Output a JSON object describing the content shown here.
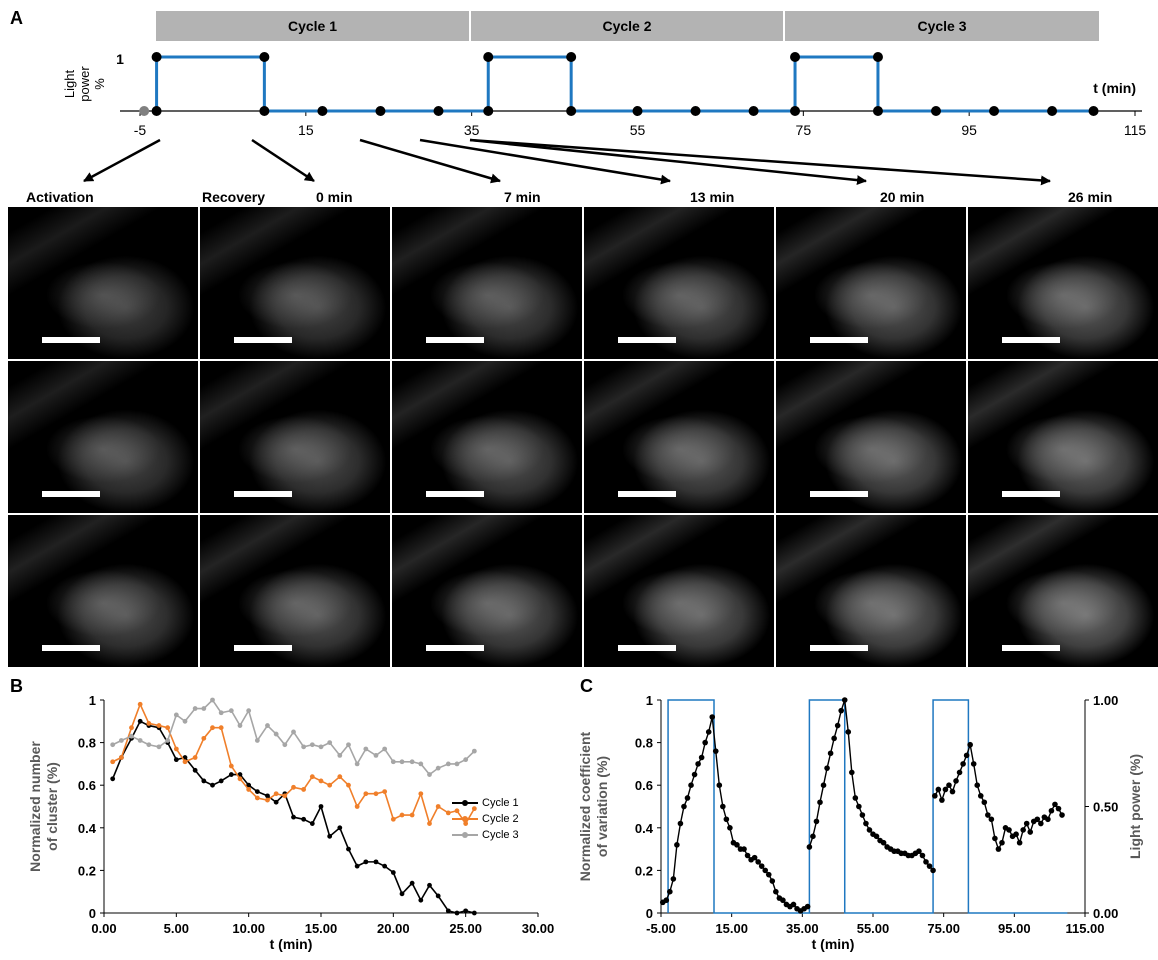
{
  "panel_a": {
    "letter": "A",
    "cycles": [
      "Cycle 1",
      "Cycle 2",
      "Cycle 3"
    ],
    "y_label": [
      "Light",
      "power",
      "%"
    ],
    "y_tick_1": "1",
    "x_label": "t (min)",
    "x_ticks": [
      "-5",
      "15",
      "35",
      "55",
      "75",
      "95",
      "115"
    ],
    "image_labels": [
      "Activation",
      "Recovery",
      "0 min",
      "7 min",
      "13 min",
      "20 min",
      "26 min"
    ],
    "grid_rows": 3,
    "grid_cols": 6
  },
  "panel_b": {
    "letter": "B",
    "chart_data": {
      "type": "line",
      "xlabel": "t (min)",
      "ylabel": "Normalized number of cluster (%)",
      "ylabel_lines": [
        "Normalized number",
        "of cluster (%)"
      ],
      "xlim": [
        0,
        30
      ],
      "ylim": [
        0,
        1
      ],
      "x_ticks": [
        "0.00",
        "5.00",
        "10.00",
        "15.00",
        "20.00",
        "25.00",
        "30.00"
      ],
      "y_ticks": [
        "0",
        "0.2",
        "0.4",
        "0.6",
        "0.8",
        "1"
      ],
      "legend_position": "right",
      "series": [
        {
          "name": "Cycle 1",
          "color": "#000000",
          "x": [
            0.6,
            1.2,
            1.9,
            2.5,
            3.1,
            3.8,
            4.4,
            5.0,
            5.6,
            6.3,
            6.9,
            7.5,
            8.1,
            8.8,
            9.4,
            10.0,
            10.6,
            11.3,
            11.9,
            12.5,
            13.1,
            13.8,
            14.4,
            15.0,
            15.6,
            16.3,
            16.9,
            17.5,
            18.1,
            18.8,
            19.4,
            20.0,
            20.6,
            21.3,
            21.9,
            22.5,
            23.1,
            23.8,
            24.4,
            25.0,
            25.6
          ],
          "y": [
            0.63,
            0.73,
            0.82,
            0.9,
            0.88,
            0.87,
            0.8,
            0.72,
            0.73,
            0.67,
            0.62,
            0.6,
            0.62,
            0.65,
            0.65,
            0.6,
            0.57,
            0.55,
            0.52,
            0.56,
            0.45,
            0.44,
            0.42,
            0.5,
            0.36,
            0.4,
            0.3,
            0.22,
            0.24,
            0.24,
            0.22,
            0.19,
            0.09,
            0.14,
            0.06,
            0.13,
            0.08,
            0.01,
            0.0,
            0.01,
            0.0
          ]
        },
        {
          "name": "Cycle 2",
          "color": "#f07f2a",
          "x": [
            0.6,
            1.2,
            1.9,
            2.5,
            3.1,
            3.8,
            4.4,
            5.0,
            5.6,
            6.3,
            6.9,
            7.5,
            8.1,
            8.8,
            9.4,
            10.0,
            10.6,
            11.3,
            11.9,
            12.5,
            13.1,
            13.8,
            14.4,
            15.0,
            15.6,
            16.3,
            16.9,
            17.5,
            18.1,
            18.8,
            19.4,
            20.0,
            20.6,
            21.3,
            21.9,
            22.5,
            23.1,
            23.8,
            24.4,
            25.0,
            25.6
          ],
          "y": [
            0.71,
            0.73,
            0.87,
            0.98,
            0.89,
            0.88,
            0.87,
            0.77,
            0.71,
            0.73,
            0.82,
            0.87,
            0.87,
            0.69,
            0.63,
            0.58,
            0.54,
            0.53,
            0.56,
            0.55,
            0.59,
            0.58,
            0.64,
            0.62,
            0.6,
            0.64,
            0.6,
            0.5,
            0.56,
            0.56,
            0.57,
            0.44,
            0.46,
            0.46,
            0.56,
            0.42,
            0.5,
            0.47,
            0.48,
            0.42,
            0.49
          ]
        },
        {
          "name": "Cycle 3",
          "color": "#a6a6a6",
          "x": [
            0.6,
            1.2,
            1.9,
            2.5,
            3.1,
            3.8,
            4.4,
            5.0,
            5.6,
            6.3,
            6.9,
            7.5,
            8.1,
            8.8,
            9.4,
            10.0,
            10.6,
            11.3,
            11.9,
            12.5,
            13.1,
            13.8,
            14.4,
            15.0,
            15.6,
            16.3,
            16.9,
            17.5,
            18.1,
            18.8,
            19.4,
            20.0,
            20.6,
            21.3,
            21.9,
            22.5,
            23.1,
            23.8,
            24.4,
            25.0,
            25.6
          ],
          "y": [
            0.79,
            0.81,
            0.83,
            0.81,
            0.79,
            0.78,
            0.81,
            0.93,
            0.9,
            0.96,
            0.96,
            1.0,
            0.94,
            0.95,
            0.88,
            0.95,
            0.81,
            0.88,
            0.84,
            0.79,
            0.85,
            0.78,
            0.79,
            0.78,
            0.8,
            0.74,
            0.79,
            0.7,
            0.77,
            0.74,
            0.77,
            0.71,
            0.71,
            0.71,
            0.7,
            0.65,
            0.68,
            0.7,
            0.7,
            0.72,
            0.76
          ]
        }
      ]
    }
  },
  "panel_c": {
    "letter": "C",
    "chart_data": {
      "type": "scatter",
      "xlabel": "t (min)",
      "ylabel": "Normalized coefficient of variation (%)",
      "ylabel_lines": [
        "Normalized coefficient",
        "of variation (%)"
      ],
      "y2label": "Light power (%)",
      "xlim": [
        -5,
        115
      ],
      "ylim": [
        0,
        1
      ],
      "y2lim": [
        0,
        1
      ],
      "x_ticks": [
        "-5.00",
        "15.00",
        "35.00",
        "55.00",
        "75.00",
        "95.00",
        "115.00"
      ],
      "y_ticks": [
        "0",
        "0.2",
        "0.4",
        "0.6",
        "0.8",
        "1"
      ],
      "y2_ticks": [
        "0.00",
        "0.50",
        "1.00"
      ],
      "series": [
        {
          "name": "",
          "color": "#000000",
          "role": "coefficient of variation",
          "segments": [
            [
              [
                -4.5,
                0.05
              ],
              [
                -3.5,
                0.06
              ],
              [
                -2.5,
                0.1
              ],
              [
                -1.5,
                0.16
              ],
              [
                -0.5,
                0.32
              ],
              [
                0.5,
                0.42
              ],
              [
                1.5,
                0.5
              ],
              [
                2.5,
                0.54
              ],
              [
                3.5,
                0.6
              ],
              [
                4.5,
                0.65
              ],
              [
                5.5,
                0.7
              ],
              [
                6.5,
                0.73
              ],
              [
                7.5,
                0.8
              ],
              [
                8.5,
                0.85
              ],
              [
                9.5,
                0.92
              ],
              [
                10.5,
                0.76
              ],
              [
                11.5,
                0.6
              ],
              [
                12.5,
                0.5
              ],
              [
                13.5,
                0.44
              ],
              [
                14.5,
                0.4
              ],
              [
                15.5,
                0.33
              ],
              [
                16.5,
                0.32
              ],
              [
                17.5,
                0.3
              ],
              [
                18.5,
                0.3
              ],
              [
                19.5,
                0.27
              ],
              [
                20.5,
                0.25
              ],
              [
                21.5,
                0.26
              ],
              [
                22.5,
                0.24
              ],
              [
                23.5,
                0.22
              ],
              [
                24.5,
                0.2
              ],
              [
                25.5,
                0.18
              ],
              [
                26.5,
                0.15
              ],
              [
                27.5,
                0.1
              ],
              [
                28.5,
                0.07
              ],
              [
                29.5,
                0.06
              ],
              [
                30.5,
                0.04
              ],
              [
                31.5,
                0.03
              ],
              [
                32.5,
                0.04
              ],
              [
                33.5,
                0.02
              ],
              [
                34.5,
                0.01
              ],
              [
                35.5,
                0.02
              ],
              [
                36.5,
                0.03
              ]
            ],
            [
              [
                37.0,
                0.31
              ],
              [
                38.0,
                0.36
              ],
              [
                39.0,
                0.43
              ],
              [
                40.0,
                0.52
              ],
              [
                41.0,
                0.6
              ],
              [
                42.0,
                0.68
              ],
              [
                43.0,
                0.75
              ],
              [
                44.0,
                0.82
              ],
              [
                45.0,
                0.88
              ],
              [
                46.0,
                0.95
              ],
              [
                47.0,
                1.0
              ],
              [
                48.0,
                0.85
              ],
              [
                49.0,
                0.66
              ],
              [
                50.0,
                0.54
              ],
              [
                51.0,
                0.5
              ],
              [
                52.0,
                0.46
              ],
              [
                53.0,
                0.42
              ],
              [
                54.0,
                0.39
              ],
              [
                55.0,
                0.37
              ],
              [
                56.0,
                0.36
              ],
              [
                57.0,
                0.34
              ],
              [
                58.0,
                0.33
              ],
              [
                59.0,
                0.31
              ],
              [
                60.0,
                0.3
              ],
              [
                61.0,
                0.29
              ],
              [
                62.0,
                0.29
              ],
              [
                63.0,
                0.28
              ],
              [
                64.0,
                0.28
              ],
              [
                65.0,
                0.27
              ],
              [
                66.0,
                0.27
              ],
              [
                67.0,
                0.28
              ],
              [
                68.0,
                0.29
              ],
              [
                69.0,
                0.27
              ],
              [
                70.0,
                0.24
              ],
              [
                71.0,
                0.22
              ],
              [
                72.0,
                0.2
              ]
            ],
            [
              [
                72.5,
                0.55
              ],
              [
                73.5,
                0.58
              ],
              [
                74.5,
                0.53
              ],
              [
                75.5,
                0.58
              ],
              [
                76.5,
                0.6
              ],
              [
                77.5,
                0.57
              ],
              [
                78.5,
                0.62
              ],
              [
                79.5,
                0.66
              ],
              [
                80.5,
                0.7
              ],
              [
                81.5,
                0.74
              ],
              [
                82.5,
                0.79
              ],
              [
                83.5,
                0.7
              ],
              [
                84.5,
                0.6
              ],
              [
                85.5,
                0.55
              ],
              [
                86.5,
                0.52
              ],
              [
                87.5,
                0.46
              ],
              [
                88.5,
                0.44
              ],
              [
                89.5,
                0.35
              ],
              [
                90.5,
                0.3
              ],
              [
                91.5,
                0.33
              ],
              [
                92.5,
                0.4
              ],
              [
                93.5,
                0.39
              ],
              [
                94.5,
                0.36
              ],
              [
                95.5,
                0.37
              ],
              [
                96.5,
                0.33
              ],
              [
                97.5,
                0.39
              ],
              [
                98.5,
                0.42
              ],
              [
                99.5,
                0.38
              ],
              [
                100.5,
                0.43
              ],
              [
                101.5,
                0.44
              ],
              [
                102.5,
                0.42
              ],
              [
                103.5,
                0.45
              ],
              [
                104.5,
                0.44
              ],
              [
                105.5,
                0.48
              ],
              [
                106.5,
                0.51
              ],
              [
                107.5,
                0.49
              ],
              [
                108.5,
                0.46
              ]
            ]
          ]
        },
        {
          "name": "",
          "color": "#1f78c1",
          "role": "light power",
          "on_intervals": [
            [
              -3,
              10
            ],
            [
              37,
              47
            ],
            [
              72,
              82
            ]
          ]
        }
      ]
    }
  }
}
